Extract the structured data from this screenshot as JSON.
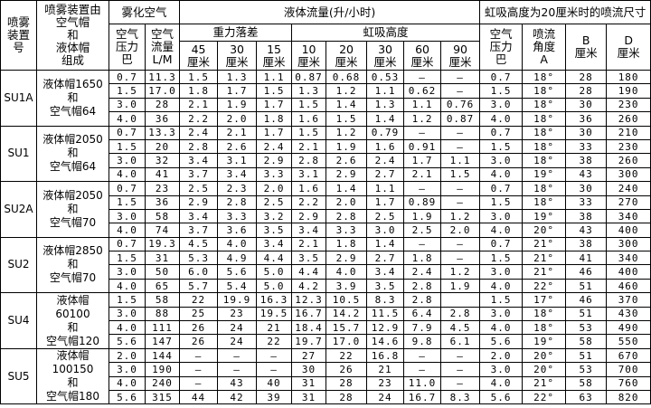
{
  "header": {
    "device_no": [
      "喷雾",
      "装置",
      "号"
    ],
    "composition": [
      "喷雾装置由",
      "空气帽",
      "和",
      "液体帽",
      "组成"
    ],
    "atomizing_air": "雾化空气",
    "air_pressure": [
      "空气",
      "压力",
      "巴"
    ],
    "air_flow": [
      "空气",
      "流量",
      "L/M"
    ],
    "liquid_flow": "液体流量(升/小时)",
    "gravity": "重力落差",
    "siphon": "虹吸高度",
    "gravity_cols": [
      [
        "45",
        "厘米"
      ],
      [
        "30",
        "厘米"
      ],
      [
        "15",
        "厘米"
      ]
    ],
    "siphon_cols": [
      [
        "10",
        "厘米"
      ],
      [
        "20",
        "厘米"
      ],
      [
        "30",
        "厘米"
      ],
      [
        "60",
        "厘米"
      ],
      [
        "90",
        "厘米"
      ]
    ],
    "spray_size": "虹吸高度为20厘米时的喷流尺寸",
    "spray_pressure": [
      "空气",
      "压力",
      "巴"
    ],
    "spray_angle": [
      "喷流",
      "角度",
      "A"
    ],
    "b": [
      "B",
      "厘米"
    ],
    "d": [
      "D",
      "厘米"
    ]
  },
  "groups": [
    {
      "id": "SU1A",
      "composition": [
        "液体帽1650",
        "和",
        "空气帽64"
      ],
      "rows": [
        [
          "0.7",
          "11.3",
          "1.5",
          "1.3",
          "1.1",
          "0.87",
          "0.68",
          "0.53",
          "–",
          "–",
          "0.7",
          "18°",
          "28",
          "180"
        ],
        [
          "1.5",
          "17.0",
          "1.8",
          "1.7",
          "1.5",
          "1.3",
          "1.2",
          "1.1",
          "0.62",
          "–",
          "1.5",
          "18°",
          "28",
          "190"
        ],
        [
          "3.0",
          "28",
          "2.1",
          "1.9",
          "1.7",
          "1.5",
          "1.4",
          "1.3",
          "1.1",
          "0.76",
          "3.0",
          "18°",
          "30",
          "230"
        ],
        [
          "4.0",
          "36",
          "2.2",
          "2.0",
          "1.8",
          "1.6",
          "1.5",
          "1.4",
          "1.2",
          "0.87",
          "4.0",
          "18°",
          "36",
          "260"
        ]
      ]
    },
    {
      "id": "SU1",
      "composition": [
        "液体帽2050",
        "和",
        "空气帽64"
      ],
      "rows": [
        [
          "0.7",
          "13.3",
          "2.4",
          "2.1",
          "1.7",
          "1.5",
          "1.2",
          "0.79",
          "–",
          "–",
          "0.7",
          "18°",
          "30",
          "210"
        ],
        [
          "1.5",
          "20",
          "2.8",
          "2.6",
          "2.4",
          "2.1",
          "1.9",
          "1.6",
          "0.91",
          "–",
          "1.5",
          "18°",
          "33",
          "230"
        ],
        [
          "3.0",
          "32",
          "3.4",
          "3.1",
          "2.9",
          "2.8",
          "2.6",
          "2.4",
          "1.7",
          "1.1",
          "3.0",
          "18°",
          "38",
          "260"
        ],
        [
          "4.0",
          "41",
          "3.7",
          "3.4",
          "3.3",
          "3.1",
          "2.9",
          "2.7",
          "2.1",
          "1.5",
          "4.0",
          "19°",
          "43",
          "300"
        ]
      ]
    },
    {
      "id": "SU2A",
      "composition": [
        "液体帽2050",
        "和",
        "空气帽70"
      ],
      "rows": [
        [
          "0.7",
          "23",
          "2.5",
          "2.3",
          "2.0",
          "1.6",
          "1.4",
          "1.1",
          "–",
          "–",
          "0.7",
          "18°",
          "30",
          "240"
        ],
        [
          "1.5",
          "36",
          "2.9",
          "2.8",
          "2.5",
          "2.2",
          "2.0",
          "1.7",
          "0.89",
          "–",
          "1.5",
          "18°",
          "33",
          "270"
        ],
        [
          "3.0",
          "58",
          "3.4",
          "3.3",
          "3.2",
          "2.9",
          "2.8",
          "2.5",
          "1.9",
          "1.2",
          "3.0",
          "19°",
          "38",
          "340"
        ],
        [
          "4.0",
          "74",
          "3.7",
          "3.6",
          "3.5",
          "3.4",
          "3.3",
          "3.0",
          "2.5",
          "2.0",
          "4.0",
          "20°",
          "43",
          "400"
        ]
      ]
    },
    {
      "id": "SU2",
      "composition": [
        "液体帽2850",
        "和",
        "空气帽70"
      ],
      "rows": [
        [
          "0.7",
          "19.3",
          "4.5",
          "4.0",
          "3.4",
          "2.1",
          "1.8",
          "1.4",
          "–",
          "–",
          "0.7",
          "21°",
          "38",
          "300"
        ],
        [
          "1.5",
          "31",
          "5.3",
          "4.9",
          "4.4",
          "3.5",
          "2.9",
          "2.7",
          "1.8",
          "–",
          "1.5",
          "21°",
          "41",
          "340"
        ],
        [
          "3.0",
          "50",
          "6.0",
          "5.6",
          "5.0",
          "4.4",
          "4.0",
          "3.4",
          "2.4",
          "1.2",
          "3.0",
          "21°",
          "46",
          "400"
        ],
        [
          "4.0",
          "65",
          "5.7",
          "5.4",
          "5.0",
          "4.2",
          "3.9",
          "3.5",
          "2.8",
          "1.9",
          "4.0",
          "22°",
          "51",
          "460"
        ]
      ]
    },
    {
      "id": "SU4",
      "composition": [
        "液体帽",
        "60100",
        "和",
        "空气帽120"
      ],
      "rows": [
        [
          "1.5",
          "58",
          "22",
          "19.9",
          "16.3",
          "12.3",
          "10.5",
          "8.3",
          "2.8",
          "",
          "1.5",
          "17°",
          "46",
          "370"
        ],
        [
          "3.0",
          "88",
          "25",
          "23",
          "19.5",
          "16.7",
          "14.2",
          "11.5",
          "6.4",
          "2.8",
          "3.0",
          "18°",
          "51",
          "430"
        ],
        [
          "4.0",
          "111",
          "26",
          "24",
          "21",
          "18.4",
          "15.7",
          "12.9",
          "7.9",
          "4.5",
          "4.0",
          "18°",
          "53",
          "490"
        ],
        [
          "5.6",
          "147",
          "26",
          "24",
          "22",
          "19.7",
          "17.0",
          "14.6",
          "9.8",
          "6.1",
          "5.6",
          "19°",
          "58",
          "550"
        ]
      ]
    },
    {
      "id": "SU5",
      "composition": [
        "液体帽",
        "100150",
        "和",
        "空气帽180"
      ],
      "rows": [
        [
          "2.0",
          "144",
          "–",
          "–",
          "–",
          "27",
          "22",
          "16.8",
          "–",
          "–",
          "2.0",
          "20°",
          "51",
          "670"
        ],
        [
          "3.0",
          "190",
          "–",
          "–",
          "–",
          "30",
          "26",
          "21",
          "–",
          "–",
          "3.0",
          "20°",
          "53",
          "700"
        ],
        [
          "4.0",
          "240",
          "–",
          "43",
          "40",
          "31",
          "28",
          "23",
          "11.0",
          "–",
          "4.0",
          "21°",
          "58",
          "760"
        ],
        [
          "5.6",
          "315",
          "44",
          "42",
          "39",
          "31",
          "28",
          "24",
          "16.7",
          "8.3",
          "5.6",
          "22°",
          "63",
          "820"
        ]
      ]
    }
  ]
}
